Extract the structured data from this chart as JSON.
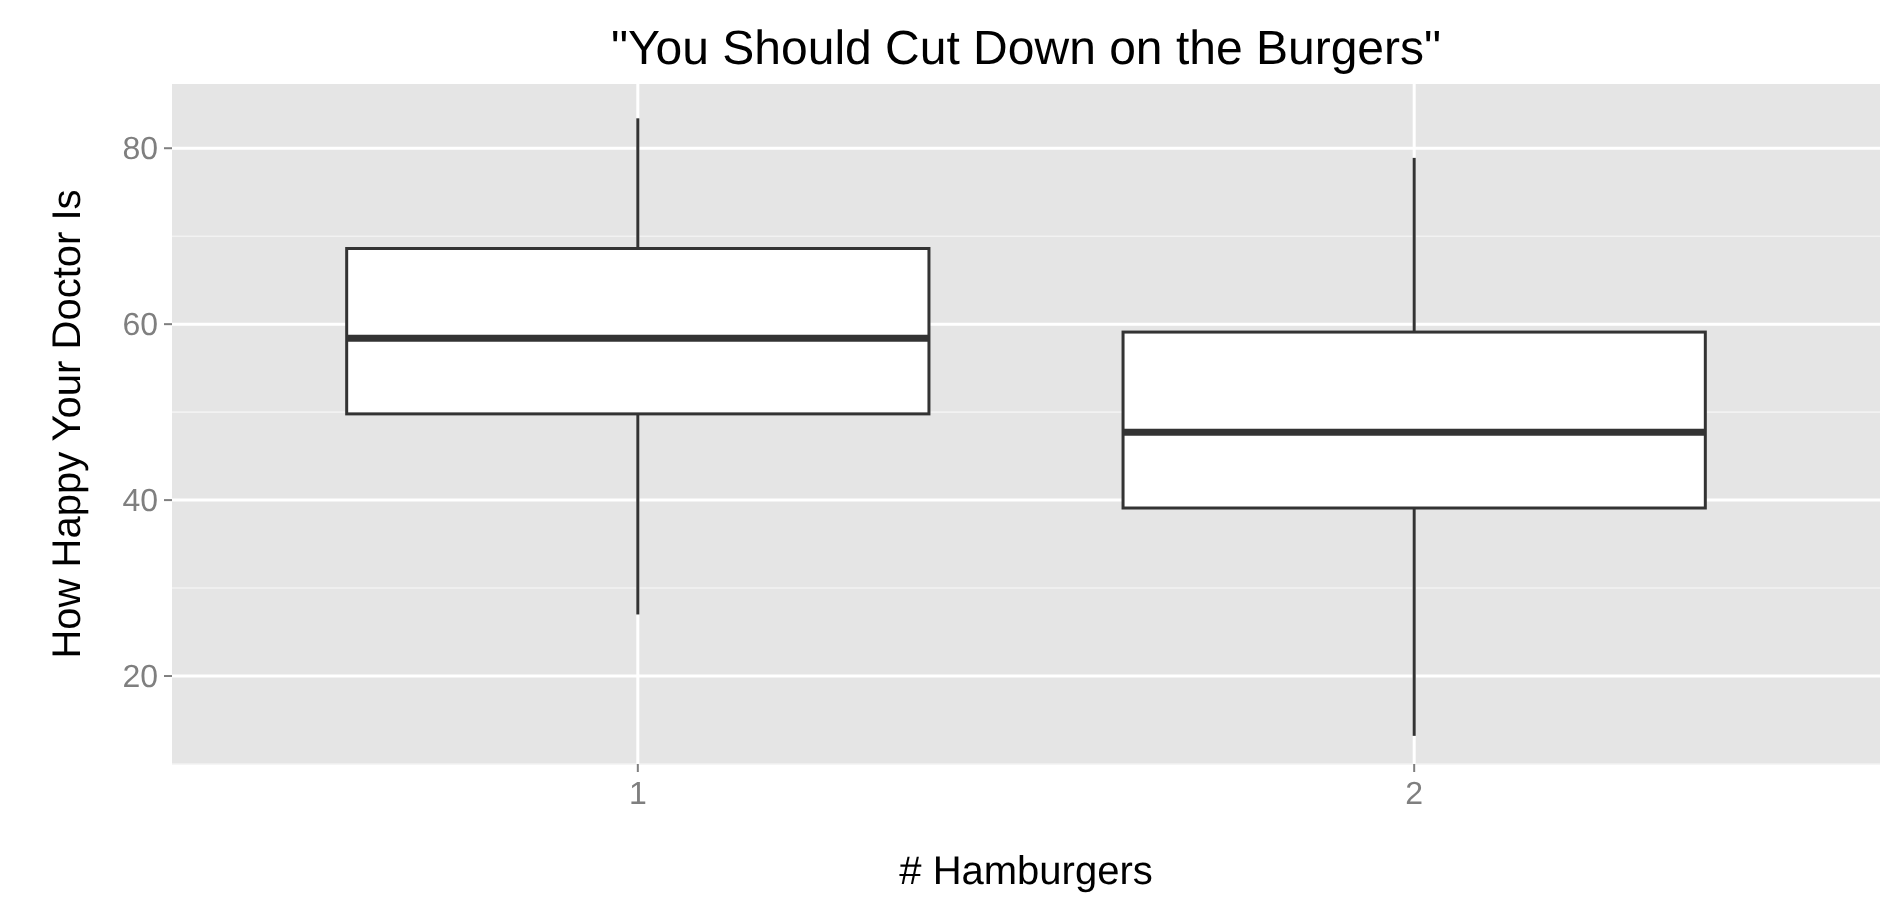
{
  "chart_data": {
    "type": "box",
    "title": "\"You Should Cut Down on the Burgers\"",
    "xlabel": "# Hamburgers",
    "ylabel": "How Happy Your Doctor Is",
    "categories": [
      "1",
      "2"
    ],
    "boxes": [
      {
        "low": 27,
        "q1": 49.8,
        "median": 58.4,
        "q3": 68.6,
        "high": 83.4
      },
      {
        "low": 13.2,
        "q1": 39.1,
        "median": 47.7,
        "q3": 59.1,
        "high": 78.9
      }
    ],
    "ylim": [
      10,
      87.3
    ],
    "yticks": [
      20,
      40,
      60,
      80
    ],
    "grid": true
  }
}
